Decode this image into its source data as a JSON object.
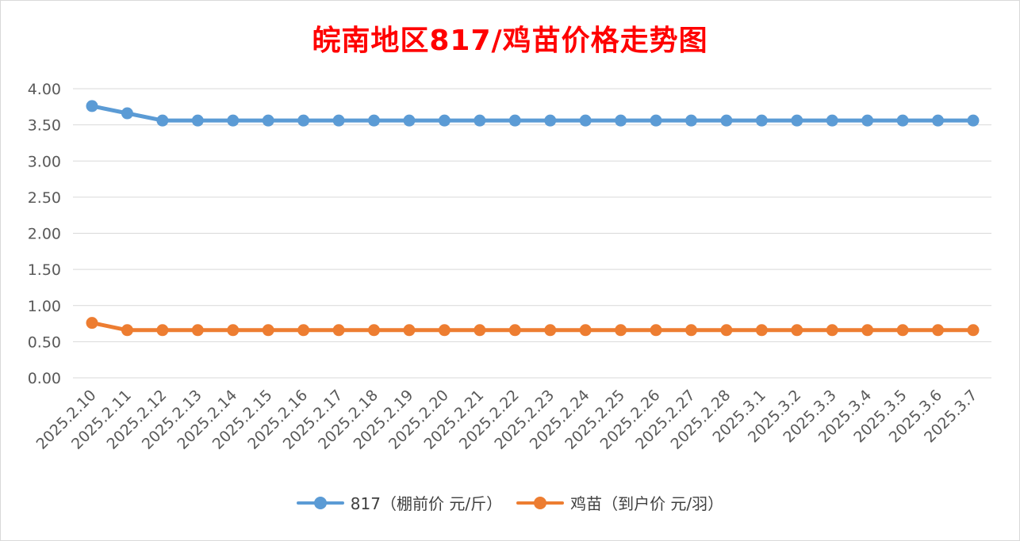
{
  "chart_data": {
    "type": "line",
    "title": "皖南地区817/鸡苗价格走势图",
    "categories": [
      "2025.2.10",
      "2025.2.11",
      "2025.2.12",
      "2025.2.13",
      "2025.2.14",
      "2025.2.15",
      "2025.2.16",
      "2025.2.17",
      "2025.2.18",
      "2025.2.19",
      "2025.2.20",
      "2025.2.21",
      "2025.2.22",
      "2025.2.23",
      "2025.2.24",
      "2025.2.25",
      "2025.2.26",
      "2025.2.27",
      "2025.2.28",
      "2025.3.1",
      "2025.3.2",
      "2025.3.3",
      "2025.3.4",
      "2025.3.5",
      "2025.3.6",
      "2025.3.7"
    ],
    "series": [
      {
        "name": "817（棚前价 元/斤）",
        "color": "#5b9bd5",
        "values": [
          3.76,
          3.66,
          3.56,
          3.56,
          3.56,
          3.56,
          3.56,
          3.56,
          3.56,
          3.56,
          3.56,
          3.56,
          3.56,
          3.56,
          3.56,
          3.56,
          3.56,
          3.56,
          3.56,
          3.56,
          3.56,
          3.56,
          3.56,
          3.56,
          3.56,
          3.56
        ]
      },
      {
        "name": "鸡苗（到户价 元/羽）",
        "color": "#ed7d31",
        "values": [
          0.76,
          0.66,
          0.66,
          0.66,
          0.66,
          0.66,
          0.66,
          0.66,
          0.66,
          0.66,
          0.66,
          0.66,
          0.66,
          0.66,
          0.66,
          0.66,
          0.66,
          0.66,
          0.66,
          0.66,
          0.66,
          0.66,
          0.66,
          0.66,
          0.66,
          0.66
        ]
      }
    ],
    "ylim": [
      0,
      4
    ],
    "yticks": [
      "0.00",
      "0.50",
      "1.00",
      "1.50",
      "2.00",
      "2.50",
      "3.00",
      "3.50",
      "4.00"
    ],
    "grid": true,
    "legend_position": "bottom",
    "title_color": "#ff0000"
  }
}
